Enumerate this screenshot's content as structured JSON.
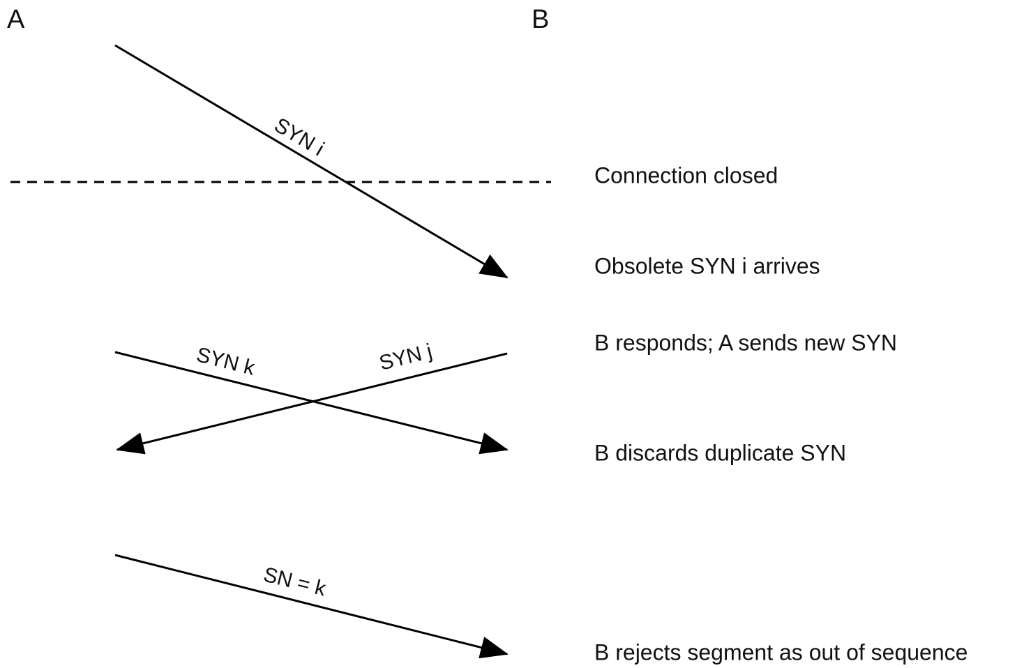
{
  "hosts": [
    "A",
    "B"
  ],
  "messages": [
    {
      "label": "SYN i"
    },
    {
      "label": "SYN k"
    },
    {
      "label": "SYN j"
    },
    {
      "label": "SN = k"
    }
  ],
  "events": [
    "Connection closed",
    "Obsolete SYN i arrives",
    "B responds; A sends new SYN",
    "B discards duplicate SYN",
    "B rejects segment as out of sequence"
  ]
}
